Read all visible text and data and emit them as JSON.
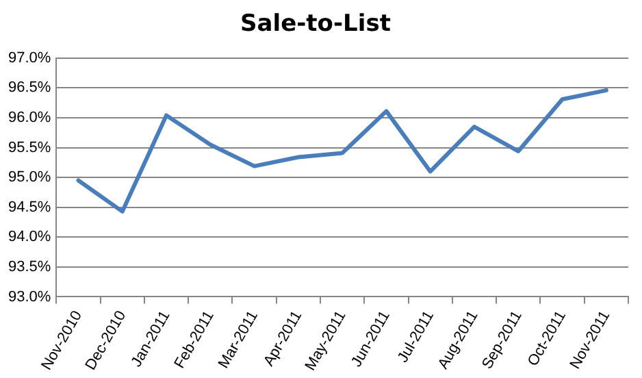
{
  "chart_data": {
    "type": "line",
    "title": "Sale-to-List",
    "categories": [
      "Nov-2010",
      "Dec-2010",
      "Jan-2011",
      "Feb-2011",
      "Mar-2011",
      "Apr-2011",
      "May-2011",
      "Jun-2011",
      "Jul-2011",
      "Aug-2011",
      "Sep-2011",
      "Oct-2011",
      "Nov-2011"
    ],
    "series": [
      {
        "color": "#4a7ebb",
        "values": [
          94.95,
          94.43,
          96.04,
          95.55,
          95.19,
          95.34,
          95.41,
          96.11,
          95.1,
          95.85,
          95.44,
          96.31,
          96.46
        ]
      }
    ],
    "ylim": [
      93.0,
      97.0
    ],
    "yticks": [
      {
        "value": 93.0,
        "label": "93.0%"
      },
      {
        "value": 93.5,
        "label": "93.5%"
      },
      {
        "value": 94.0,
        "label": "94.0%"
      },
      {
        "value": 94.5,
        "label": "94.5%"
      },
      {
        "value": 95.0,
        "label": "95.0%"
      },
      {
        "value": 95.5,
        "label": "95.5%"
      },
      {
        "value": 96.0,
        "label": "96.0%"
      },
      {
        "value": 96.5,
        "label": "96.5%"
      },
      {
        "value": 97.0,
        "label": "97.0%"
      }
    ],
    "grid": "y",
    "legend": false,
    "marker": "none",
    "line_style": "solid"
  }
}
